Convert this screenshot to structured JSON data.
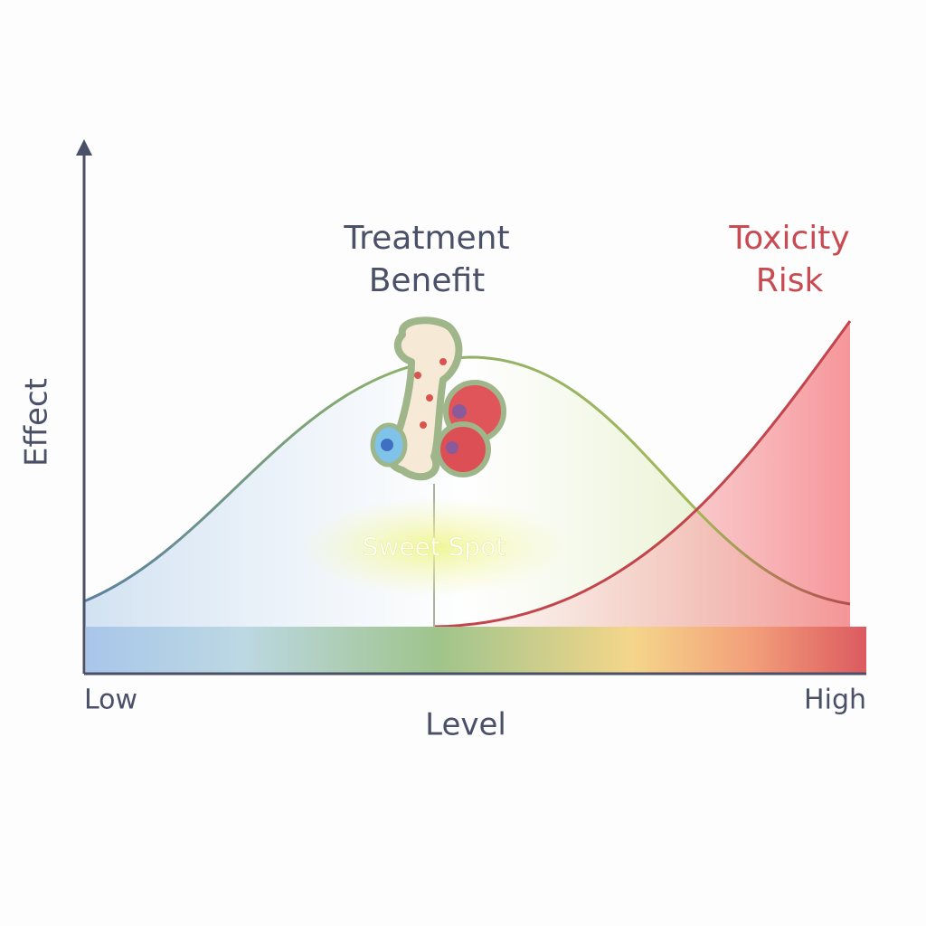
{
  "curves": [
    {
      "label": "Treatment Benefit"
    },
    {
      "label": "Toxicity Risk"
    }
  ],
  "sweet_spot": "Sweet Spot",
  "axes": {
    "y": "Effect",
    "x": "Level",
    "x_low": "Low",
    "x_high": "High"
  }
}
